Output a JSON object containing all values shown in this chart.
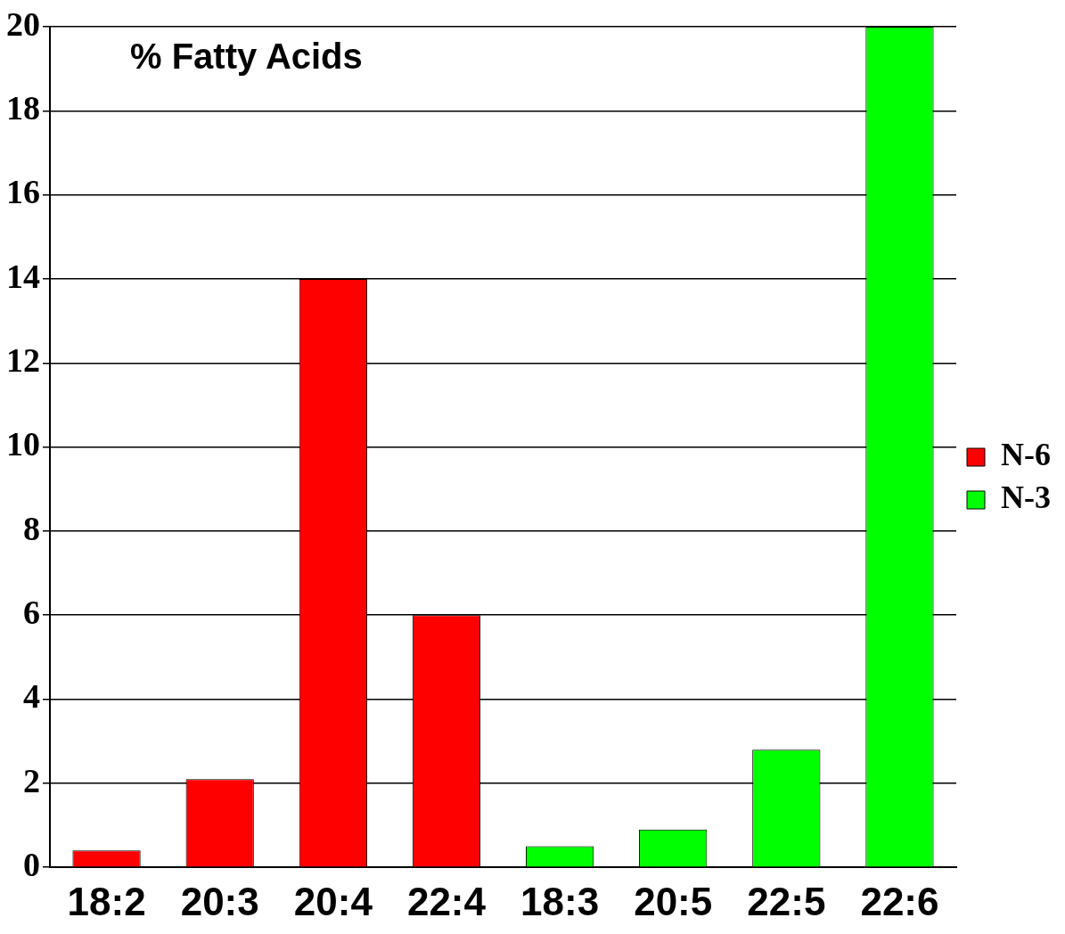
{
  "chart_data": {
    "type": "bar",
    "title": "% Fatty Acids",
    "categories": [
      "18:2",
      "20:3",
      "20:4",
      "22:4",
      "18:3",
      "20:5",
      "22:5",
      "22:6"
    ],
    "series": [
      {
        "name": "N-6",
        "color": "#ff0000",
        "values": [
          0.4,
          2.1,
          14,
          6,
          null,
          null,
          null,
          null
        ]
      },
      {
        "name": "N-3",
        "color": "#00ff00",
        "values": [
          null,
          null,
          null,
          null,
          0.5,
          0.9,
          2.8,
          20
        ]
      }
    ],
    "ylim": [
      0,
      20
    ],
    "yticks": [
      0,
      2,
      4,
      6,
      8,
      10,
      12,
      14,
      16,
      18,
      20
    ],
    "grid": "y",
    "legend": "right"
  }
}
